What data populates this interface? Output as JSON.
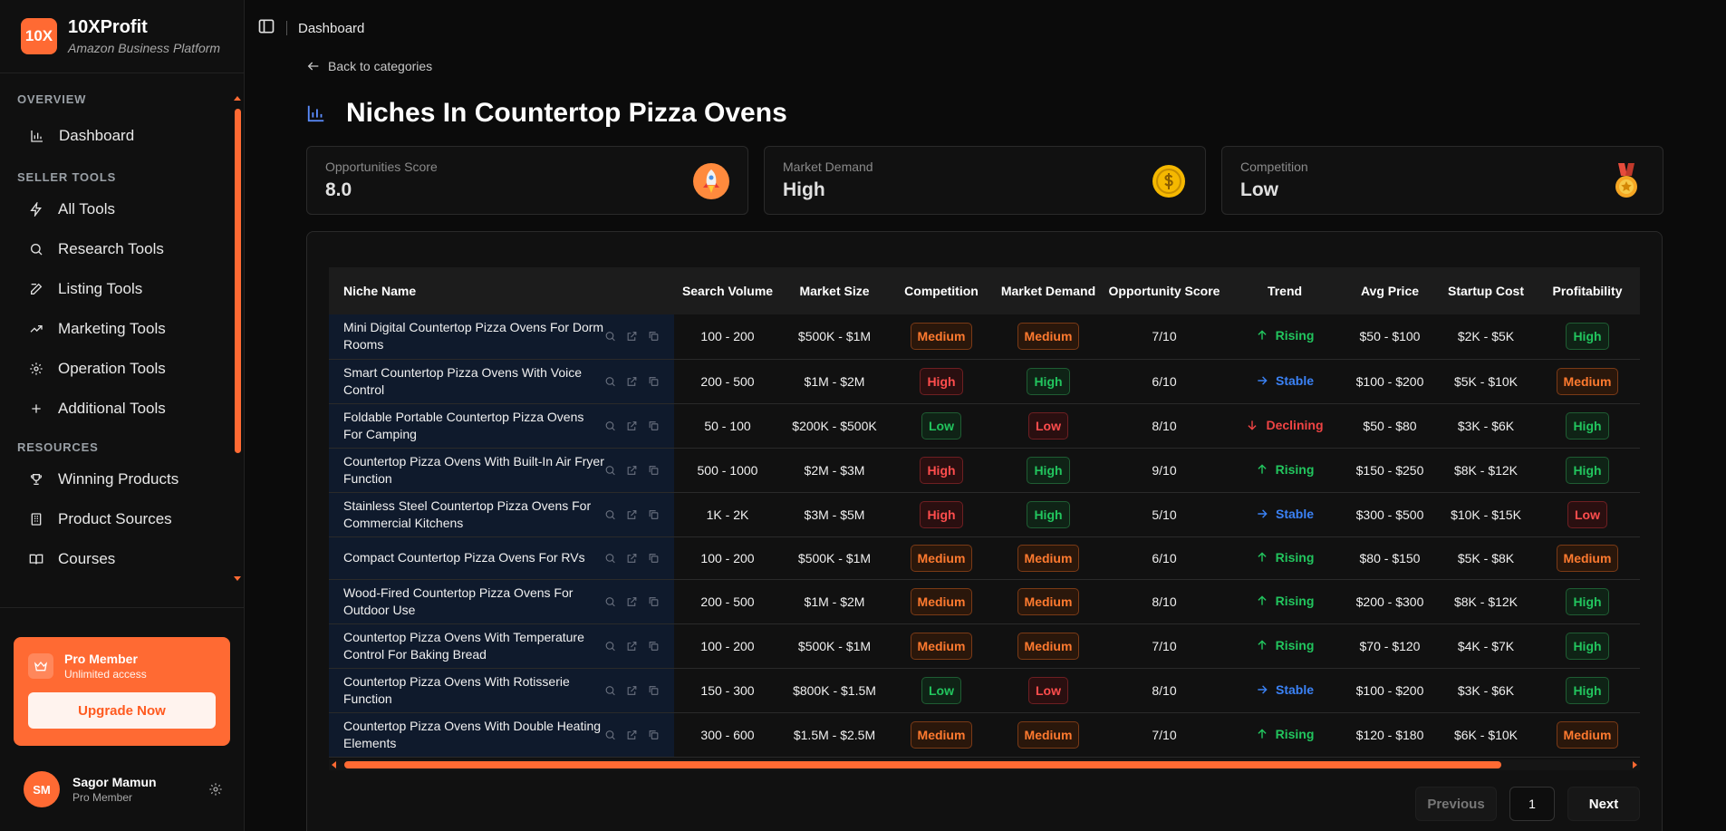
{
  "brand": {
    "logo": "10X",
    "name": "10XProfit",
    "tagline": "Amazon Business Platform",
    "accent": "#ff6a33"
  },
  "sidebar": {
    "sections": [
      {
        "title": "OVERVIEW",
        "items": [
          {
            "label": "Dashboard",
            "icon": "bar-chart-icon"
          }
        ]
      },
      {
        "title": "SELLER TOOLS",
        "items": [
          {
            "label": "All Tools",
            "icon": "lightning-icon"
          },
          {
            "label": "Research Tools",
            "icon": "search-icon"
          },
          {
            "label": "Listing Tools",
            "icon": "edit-icon"
          },
          {
            "label": "Marketing Tools",
            "icon": "trending-up-icon"
          },
          {
            "label": "Operation Tools",
            "icon": "gear-icon"
          },
          {
            "label": "Additional Tools",
            "icon": "plus-icon"
          }
        ]
      },
      {
        "title": "RESOURCES",
        "items": [
          {
            "label": "Winning Products",
            "icon": "trophy-icon"
          },
          {
            "label": "Product Sources",
            "icon": "building-icon"
          },
          {
            "label": "Courses",
            "icon": "book-icon"
          }
        ]
      }
    ],
    "pro": {
      "title": "Pro Member",
      "subtitle": "Unlimited access",
      "button": "Upgrade Now"
    },
    "user": {
      "initials": "SM",
      "name": "Sagor Mamun",
      "role": "Pro Member"
    }
  },
  "topbar": {
    "breadcrumb": "Dashboard"
  },
  "main": {
    "back": "Back to categories",
    "title": "Niches In Countertop Pizza Ovens",
    "stats": [
      {
        "label": "Opportunities Score",
        "value": "8.0",
        "icon": "rocket-icon"
      },
      {
        "label": "Market Demand",
        "value": "High",
        "icon": "coin-icon"
      },
      {
        "label": "Competition",
        "value": "Low",
        "icon": "medal-icon"
      }
    ],
    "columns": [
      "Niche Name",
      "Search Volume",
      "Market Size",
      "Competition",
      "Market Demand",
      "Opportunity Score",
      "Trend",
      "Avg Price",
      "Startup Cost",
      "Profitability"
    ],
    "rows": [
      {
        "name": "Mini Digital Countertop Pizza Ovens For Dorm Rooms",
        "volume": "100 - 200",
        "size": "$500K - $1M",
        "competition": "Medium",
        "demand": "Medium",
        "score": "7/10",
        "trend": "Rising",
        "price": "$50 - $100",
        "startup": "$2K - $5K",
        "profit": "High"
      },
      {
        "name": "Smart Countertop Pizza Ovens With Voice Control",
        "volume": "200 - 500",
        "size": "$1M - $2M",
        "competition": "High",
        "demand": "High",
        "score": "6/10",
        "trend": "Stable",
        "price": "$100 - $200",
        "startup": "$5K - $10K",
        "profit": "Medium"
      },
      {
        "name": "Foldable Portable Countertop Pizza Ovens For Camping",
        "volume": "50 - 100",
        "size": "$200K - $500K",
        "competition": "Low",
        "demand": "Low",
        "score": "8/10",
        "trend": "Declining",
        "price": "$50 - $80",
        "startup": "$3K - $6K",
        "profit": "High"
      },
      {
        "name": "Countertop Pizza Ovens With Built-In Air Fryer Function",
        "volume": "500 - 1000",
        "size": "$2M - $3M",
        "competition": "High",
        "demand": "High",
        "score": "9/10",
        "trend": "Rising",
        "price": "$150 - $250",
        "startup": "$8K - $12K",
        "profit": "High"
      },
      {
        "name": "Stainless Steel Countertop Pizza Ovens For Commercial Kitchens",
        "volume": "1K - 2K",
        "size": "$3M - $5M",
        "competition": "High",
        "demand": "High",
        "score": "5/10",
        "trend": "Stable",
        "price": "$300 - $500",
        "startup": "$10K - $15K",
        "profit": "Low"
      },
      {
        "name": "Compact Countertop Pizza Ovens For RVs",
        "volume": "100 - 200",
        "size": "$500K - $1M",
        "competition": "Medium",
        "demand": "Medium",
        "score": "6/10",
        "trend": "Rising",
        "price": "$80 - $150",
        "startup": "$5K - $8K",
        "profit": "Medium"
      },
      {
        "name": "Wood-Fired Countertop Pizza Ovens For Outdoor Use",
        "volume": "200 - 500",
        "size": "$1M - $2M",
        "competition": "Medium",
        "demand": "Medium",
        "score": "8/10",
        "trend": "Rising",
        "price": "$200 - $300",
        "startup": "$8K - $12K",
        "profit": "High"
      },
      {
        "name": "Countertop Pizza Ovens With Temperature Control For Baking Bread",
        "volume": "100 - 200",
        "size": "$500K - $1M",
        "competition": "Medium",
        "demand": "Medium",
        "score": "7/10",
        "trend": "Rising",
        "price": "$70 - $120",
        "startup": "$4K - $7K",
        "profit": "High"
      },
      {
        "name": "Countertop Pizza Ovens With Rotisserie Function",
        "volume": "150 - 300",
        "size": "$800K - $1.5M",
        "competition": "Low",
        "demand": "Low",
        "score": "8/10",
        "trend": "Stable",
        "price": "$100 - $200",
        "startup": "$3K - $6K",
        "profit": "High"
      },
      {
        "name": "Countertop Pizza Ovens With Double Heating Elements",
        "volume": "300 - 600",
        "size": "$1.5M - $2.5M",
        "competition": "Medium",
        "demand": "Medium",
        "score": "7/10",
        "trend": "Rising",
        "price": "$120 - $180",
        "startup": "$6K - $10K",
        "profit": "Medium"
      }
    ],
    "pagination": {
      "previous": "Previous",
      "page": "1",
      "next": "Next"
    }
  },
  "colors": {
    "rising": "#22c55e",
    "stable": "#3b82f6",
    "declining": "#ef4444",
    "medium": "#ff7a2f",
    "high_risk": "#ff4d4d"
  }
}
